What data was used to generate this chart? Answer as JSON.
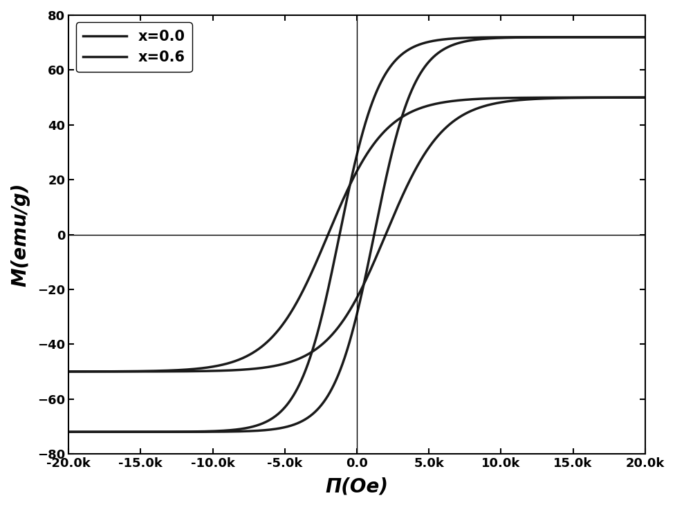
{
  "title": "",
  "xlabel": "Π(Oe)",
  "ylabel": "M(emu/g)",
  "xlim": [
    -20000,
    20000
  ],
  "ylim": [
    -80,
    80
  ],
  "xticks": [
    -20000,
    -15000,
    -10000,
    -5000,
    0,
    5000,
    10000,
    15000,
    20000
  ],
  "yticks": [
    -80,
    -60,
    -40,
    -20,
    0,
    20,
    40,
    60,
    80
  ],
  "legend": [
    "x=0.0",
    "x=0.6"
  ],
  "line_color": "#1a1a1a",
  "line_width": 2.5,
  "background_color": "#ffffff",
  "curve1_Ms": 72,
  "curve1_Hc": 1200,
  "curve1_a": 2800,
  "curve2_Ms": 50,
  "curve2_Hc": 2000,
  "curve2_a": 4000
}
